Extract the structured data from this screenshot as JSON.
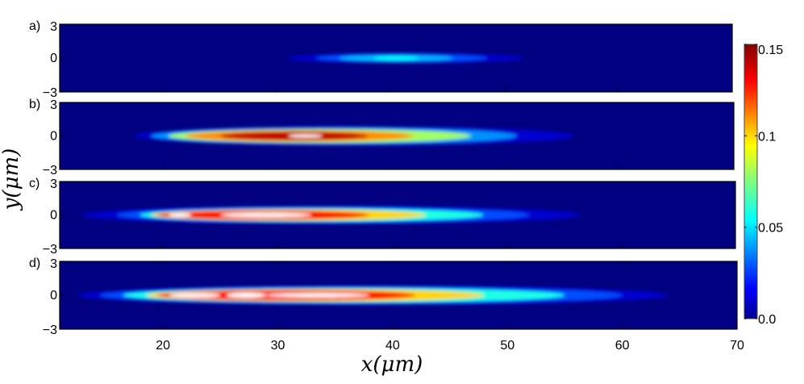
{
  "chart_data": {
    "type": "heatmap",
    "xlabel": "x(μm)",
    "ylabel": "y(μm)",
    "xlim": [
      11,
      70
    ],
    "ylim": [
      -3,
      3
    ],
    "x_ticks": [
      20,
      30,
      40,
      50,
      60,
      70
    ],
    "x_tick_labels": [
      "20",
      "30",
      "40",
      "50",
      "60",
      "70"
    ],
    "y_ticks": [
      3,
      0,
      -3
    ],
    "y_tick_labels": [
      "3",
      "0",
      "−3"
    ],
    "colorbar": {
      "range": [
        0.0,
        0.15
      ],
      "ticks": [
        0.0,
        0.05,
        0.1,
        0.15
      ],
      "tick_labels": [
        "0.0",
        "0.05",
        "0.1",
        "0.15"
      ],
      "colormap": "jet",
      "saturated_color": "#ffffff"
    },
    "panels": [
      {
        "label": "a)",
        "peak": 0.055,
        "layers": [
          {
            "x": [
              30.9,
              51.7
            ],
            "ry": 0.45,
            "level": 0.012
          },
          {
            "x": [
              33.5,
              48.5
            ],
            "ry": 0.38,
            "level": 0.03
          },
          {
            "x": [
              35.5,
              45.5
            ],
            "ry": 0.3,
            "level": 0.045
          },
          {
            "x": [
              38.5,
              42.5
            ],
            "ry": 0.2,
            "level": 0.055
          }
        ]
      },
      {
        "label": "b)",
        "peak": 0.16,
        "layers": [
          {
            "x": [
              17.5,
              56.0
            ],
            "ry": 0.85,
            "level": 0.012
          },
          {
            "x": [
              19.0,
              51.0
            ],
            "ry": 0.75,
            "level": 0.04
          },
          {
            "x": [
              20.5,
              47.0
            ],
            "ry": 0.62,
            "level": 0.08
          },
          {
            "x": [
              22.0,
              42.0
            ],
            "ry": 0.5,
            "level": 0.11
          },
          {
            "x": [
              25.0,
              38.0
            ],
            "ry": 0.38,
            "level": 0.14
          },
          {
            "x": [
              31.0,
              34.0
            ],
            "ry": 0.14,
            "level": 0.16
          }
        ]
      },
      {
        "label": "c)",
        "peak": 0.16,
        "layers": [
          {
            "x": [
              13.0,
              56.5
            ],
            "ry": 0.8,
            "level": 0.012
          },
          {
            "x": [
              16.0,
              52.0
            ],
            "ry": 0.7,
            "level": 0.03
          },
          {
            "x": [
              18.0,
              48.0
            ],
            "ry": 0.6,
            "level": 0.06
          },
          {
            "x": [
              19.0,
              43.0
            ],
            "ry": 0.5,
            "level": 0.1
          },
          {
            "x": [
              19.5,
              38.0
            ],
            "ry": 0.4,
            "level": 0.13
          },
          {
            "x": [
              20.5,
              22.5
            ],
            "ry": 0.18,
            "level": 0.16
          },
          {
            "x": [
              25.0,
              33.0
            ],
            "ry": 0.2,
            "level": 0.16
          }
        ]
      },
      {
        "label": "d)",
        "peak": 0.16,
        "layers": [
          {
            "x": [
              12.5,
              64.0
            ],
            "ry": 0.85,
            "level": 0.012
          },
          {
            "x": [
              14.5,
              60.0
            ],
            "ry": 0.75,
            "level": 0.03
          },
          {
            "x": [
              16.5,
              55.0
            ],
            "ry": 0.65,
            "level": 0.06
          },
          {
            "x": [
              18.5,
              48.0
            ],
            "ry": 0.55,
            "level": 0.1
          },
          {
            "x": [
              19.5,
              42.0
            ],
            "ry": 0.45,
            "level": 0.13
          },
          {
            "x": [
              20.5,
              25.0
            ],
            "ry": 0.2,
            "level": 0.16
          },
          {
            "x": [
              25.5,
              29.0
            ],
            "ry": 0.22,
            "level": 0.16
          },
          {
            "x": [
              29.0,
              38.0
            ],
            "ry": 0.18,
            "level": 0.16
          }
        ]
      }
    ]
  }
}
